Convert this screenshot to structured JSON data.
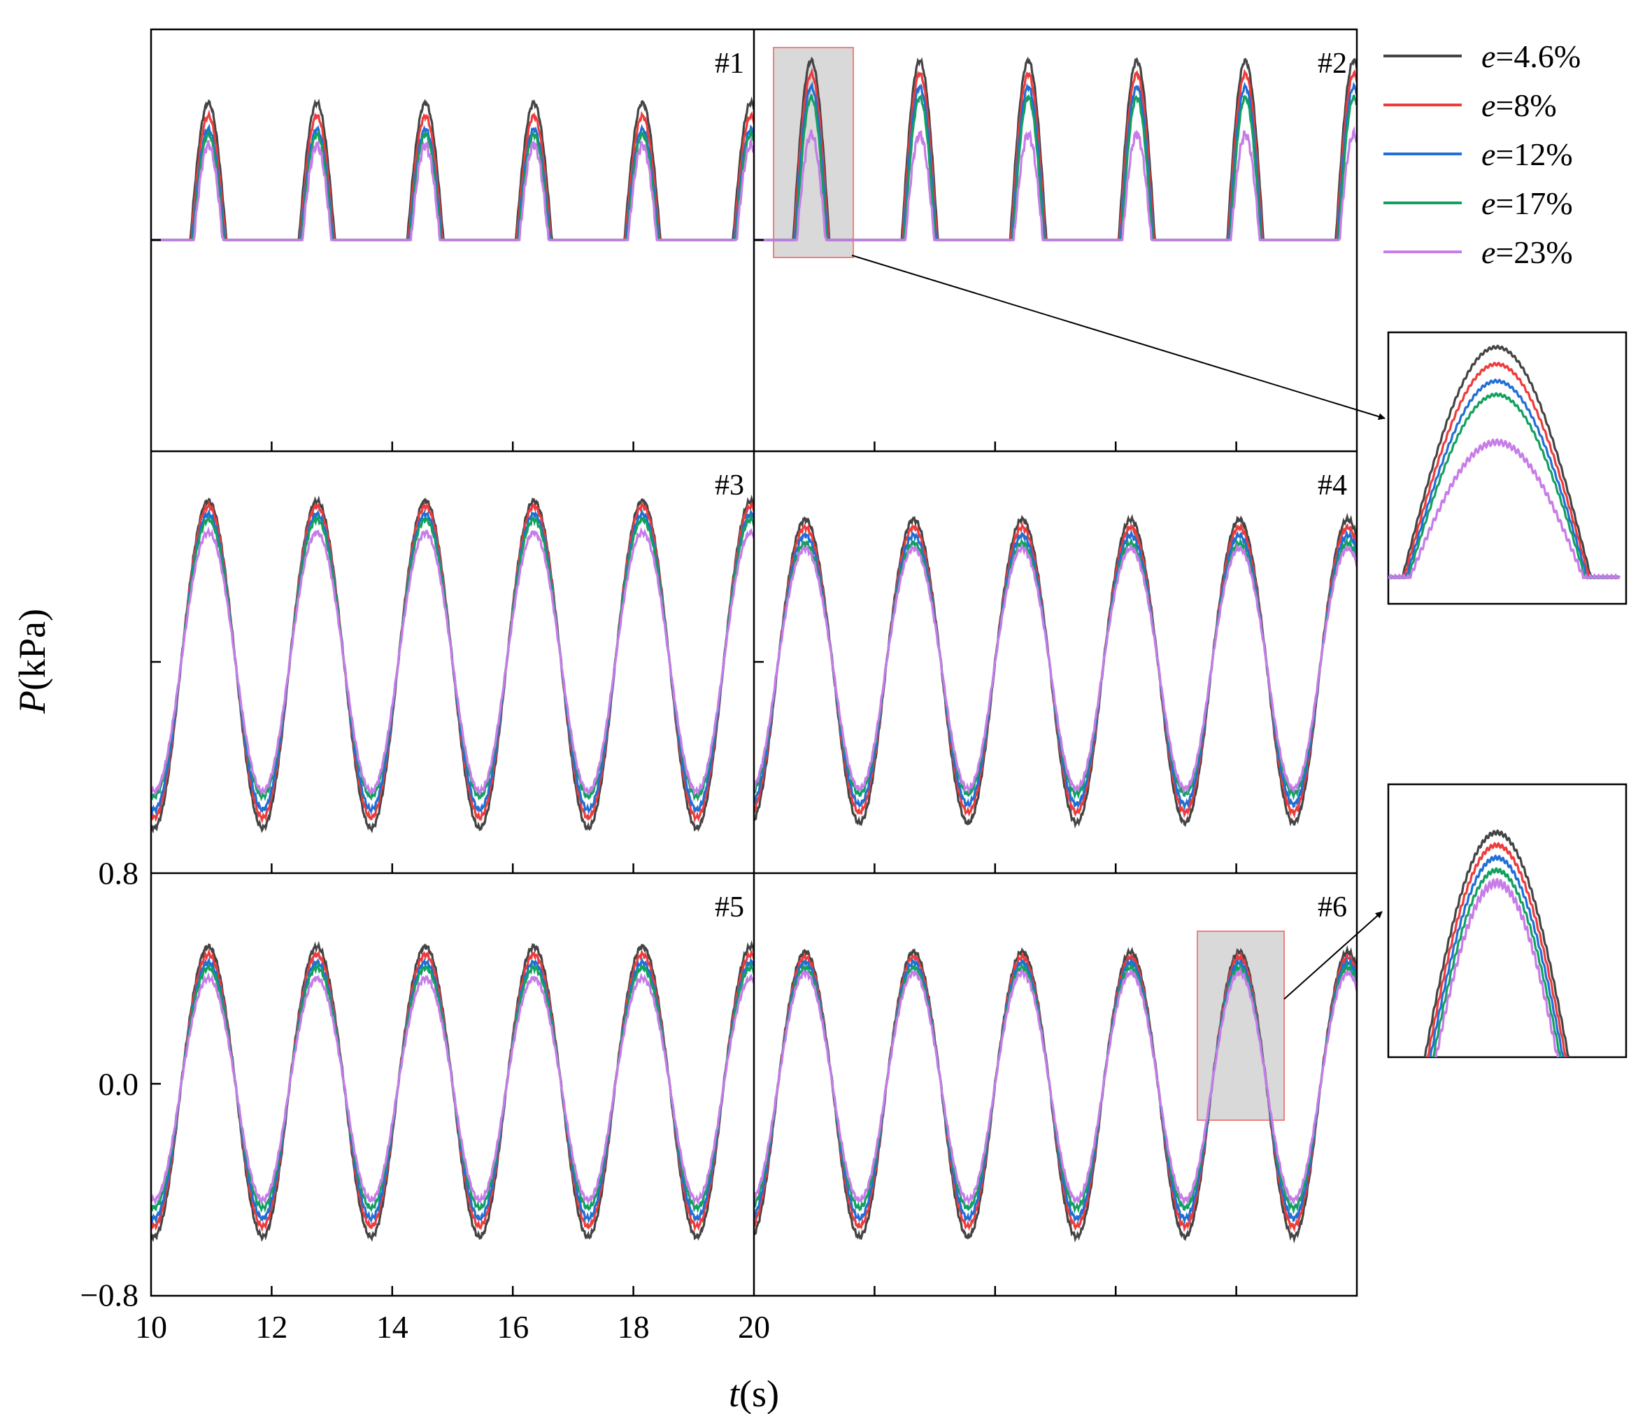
{
  "figure": {
    "y_axis_label_italic": "P",
    "y_axis_label_unit": "(kPa)",
    "x_axis_label_italic": "t",
    "x_axis_label_unit": "(s)",
    "panel_labels": [
      "#1",
      "#2",
      "#3",
      "#4",
      "#5",
      "#6"
    ]
  },
  "legend": [
    {
      "prefix": "e",
      "text": "=4.6%",
      "color": "#444444"
    },
    {
      "prefix": "e",
      "text": "=8%",
      "color": "#ef3b3b"
    },
    {
      "prefix": "e",
      "text": "=12%",
      "color": "#1f6fd6"
    },
    {
      "prefix": "e",
      "text": "=17%",
      "color": "#12a060"
    },
    {
      "prefix": "e",
      "text": "=23%",
      "color": "#c77ce8"
    }
  ],
  "colors": {
    "highlight_fill": "#d9d9d9",
    "highlight_stroke": "#f08080",
    "axis": "#000000"
  },
  "chart_data": {
    "type": "line",
    "xlabel": "t(s)",
    "ylabel": "P(kPa)",
    "xlim": [
      10,
      20
    ],
    "ylim": [
      -0.8,
      0.8
    ],
    "x_ticks": [
      10,
      12,
      14,
      16,
      18,
      20
    ],
    "y_ticks": [
      -0.8,
      0.0,
      0.8
    ],
    "y_tick_labels": [
      "−0.8",
      "0.0",
      "0.8"
    ],
    "period_s": 1.8,
    "grid": false,
    "legend_position": "top-right, outside",
    "panels": [
      {
        "label": "#1",
        "waveform": "clipped-crests",
        "peak_first_crest_s": 10.95,
        "baseline_kPa": 0.0,
        "peak_kPa": [
          0.52,
          0.47,
          0.42,
          0.4,
          0.36
        ]
      },
      {
        "label": "#2",
        "waveform": "clipped-crests",
        "peak_first_crest_s": 10.95,
        "baseline_kPa": 0.0,
        "peak_kPa": [
          0.68,
          0.63,
          0.58,
          0.54,
          0.4
        ],
        "highlighted_crest": 1
      },
      {
        "label": "#3",
        "waveform": "sinusoidal",
        "peak_first_crest_s": 10.95,
        "max_kPa": [
          0.61,
          0.59,
          0.56,
          0.54,
          0.49
        ],
        "min_kPa": [
          -0.63,
          -0.59,
          -0.56,
          -0.51,
          -0.49
        ]
      },
      {
        "label": "#4",
        "waveform": "sinusoidal",
        "peak_first_crest_s": 10.85,
        "max_kPa": [
          0.54,
          0.51,
          0.48,
          0.45,
          0.43
        ],
        "min_kPa": [
          -0.61,
          -0.57,
          -0.54,
          -0.5,
          -0.48
        ]
      },
      {
        "label": "#5",
        "waveform": "sinusoidal",
        "peak_first_crest_s": 10.95,
        "max_kPa": [
          0.52,
          0.49,
          0.46,
          0.44,
          0.4
        ],
        "min_kPa": [
          -0.58,
          -0.54,
          -0.51,
          -0.47,
          -0.44
        ]
      },
      {
        "label": "#6",
        "waveform": "sinusoidal",
        "peak_first_crest_s": 10.85,
        "max_kPa": [
          0.5,
          0.48,
          0.46,
          0.44,
          0.42
        ],
        "min_kPa": [
          -0.58,
          -0.54,
          -0.51,
          -0.47,
          -0.44
        ],
        "highlighted_crest": 5
      }
    ]
  }
}
